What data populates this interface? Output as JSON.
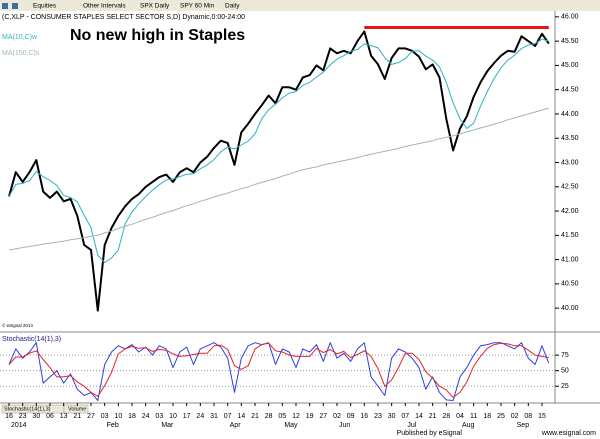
{
  "toolbar": {
    "items": [
      "Equities",
      "Other Intervals",
      "SPX Daily",
      "SPY 60 Min",
      "Daily"
    ]
  },
  "footer": {
    "publisher": "Published by eSignal",
    "url": "www.esignal.com",
    "copyright": "© eSignal 2014"
  },
  "tabs": [
    "Stochastic(14(1),3)",
    "Volume"
  ],
  "chart_data": [
    {
      "type": "line",
      "title": "(C,XLP - CONSUMER STAPLES SELECT SECTOR S,D) Dynamic,0:00-24:00",
      "annotation": "No new high in Staples",
      "resistance": {
        "value": 45.78,
        "from": 52,
        "to": 79,
        "color": "#e8141c"
      },
      "categories": [
        "16",
        null,
        "23",
        null,
        "30",
        null,
        "06",
        null,
        "13",
        null,
        "21",
        null,
        "27",
        null,
        "03",
        null,
        "10",
        null,
        "18",
        null,
        "24",
        null,
        "03",
        null,
        "10",
        null,
        "17",
        null,
        "24",
        null,
        "31",
        null,
        "07",
        null,
        "14",
        null,
        "21",
        null,
        "28",
        null,
        "05",
        null,
        "12",
        null,
        "19",
        null,
        "27",
        null,
        "02",
        null,
        "09",
        null,
        "16",
        null,
        "23",
        null,
        "30",
        null,
        "07",
        null,
        "14",
        null,
        "21",
        null,
        "28",
        null,
        "04",
        null,
        "11",
        null,
        "18",
        null,
        "25",
        null,
        "02",
        null,
        "08",
        null,
        "15",
        null
      ],
      "months": [
        {
          "label": "2014",
          "start": 0
        },
        {
          "label": "Feb",
          "start": 14
        },
        {
          "label": "Mar",
          "start": 22
        },
        {
          "label": "Apr",
          "start": 32
        },
        {
          "label": "May",
          "start": 40
        },
        {
          "label": "Jun",
          "start": 48
        },
        {
          "label": "Jul",
          "start": 58
        },
        {
          "label": "Aug",
          "start": 66
        },
        {
          "label": "Sep",
          "start": 74
        }
      ],
      "series": [
        {
          "name": "XLP",
          "color": "#000000",
          "width": 2,
          "values": [
            42.3,
            42.8,
            42.6,
            42.8,
            43.05,
            42.4,
            42.27,
            42.4,
            42.2,
            42.25,
            41.9,
            41.3,
            41.2,
            39.95,
            41.3,
            41.65,
            41.9,
            42.1,
            42.25,
            42.35,
            42.5,
            42.6,
            42.7,
            42.75,
            42.6,
            42.8,
            42.88,
            42.8,
            43.0,
            43.12,
            43.3,
            43.45,
            43.4,
            42.95,
            43.62,
            43.8,
            44.0,
            44.18,
            44.38,
            44.22,
            44.55,
            44.55,
            44.5,
            44.75,
            44.8,
            45.0,
            44.9,
            45.35,
            45.25,
            45.3,
            45.25,
            45.5,
            45.7,
            45.2,
            45.02,
            44.72,
            45.15,
            45.35,
            45.35,
            45.3,
            45.18,
            44.92,
            45.02,
            44.75,
            43.9,
            43.25,
            43.7,
            43.95,
            44.35,
            44.65,
            44.88,
            45.05,
            45.2,
            45.3,
            45.28,
            45.6,
            45.5,
            45.4,
            45.65,
            45.45
          ]
        },
        {
          "name": "MA(10,C)w",
          "color": "#29b3c4",
          "width": 1,
          "values": [
            42.3,
            42.55,
            42.57,
            42.63,
            42.81,
            42.71,
            42.63,
            42.53,
            42.32,
            42.28,
            42.19,
            41.91,
            41.66,
            41.09,
            40.94,
            41.03,
            41.2,
            41.74,
            41.98,
            42.15,
            42.3,
            42.43,
            42.54,
            42.64,
            42.66,
            42.71,
            42.76,
            42.77,
            42.87,
            42.95,
            43.06,
            43.22,
            43.32,
            43.28,
            43.36,
            43.44,
            43.59,
            43.9,
            44.09,
            44.2,
            44.33,
            44.43,
            44.46,
            44.59,
            44.65,
            44.76,
            44.86,
            45.01,
            45.13,
            45.2,
            45.29,
            45.33,
            45.44,
            45.41,
            45.36,
            45.16,
            45.02,
            45.06,
            45.14,
            45.29,
            45.3,
            45.19,
            45.11,
            44.97,
            44.65,
            44.23,
            43.9,
            43.7,
            43.81,
            44.16,
            44.46,
            44.73,
            44.95,
            45.11,
            45.21,
            45.35,
            45.42,
            45.45,
            45.54,
            45.5
          ]
        },
        {
          "name": "MA(150,C)s",
          "color": "#9fb6be",
          "width": 1,
          "values": [
            41.2,
            41.22,
            41.25,
            41.27,
            41.29,
            41.32,
            41.34,
            41.36,
            41.38,
            41.41,
            41.43,
            41.45,
            41.48,
            41.5,
            41.55,
            41.59,
            41.64,
            41.69,
            41.73,
            41.78,
            41.83,
            41.87,
            41.92,
            41.97,
            42.01,
            42.06,
            42.11,
            42.15,
            42.2,
            42.24,
            42.29,
            42.33,
            42.37,
            42.42,
            42.46,
            42.5,
            42.55,
            42.59,
            42.63,
            42.67,
            42.72,
            42.76,
            42.81,
            42.85,
            42.88,
            42.91,
            42.95,
            42.98,
            43.01,
            43.04,
            43.07,
            43.1,
            43.14,
            43.17,
            43.2,
            43.23,
            43.26,
            43.29,
            43.33,
            43.36,
            43.39,
            43.42,
            43.45,
            43.49,
            43.52,
            43.55,
            43.59,
            43.63,
            43.67,
            43.71,
            43.75,
            43.79,
            43.83,
            43.88,
            43.92,
            43.96,
            44.0,
            44.04,
            44.08,
            44.12
          ]
        }
      ],
      "ylim": [
        39.55,
        46.1
      ],
      "yticks": [
        {
          "value": 40,
          "label": "40.00"
        },
        {
          "value": 40.5,
          "label": "40.50"
        },
        {
          "value": 41,
          "label": "41.00"
        },
        {
          "value": 41.5,
          "label": "41.50"
        },
        {
          "value": 42,
          "label": "42.00"
        },
        {
          "value": 42.5,
          "label": "42.50"
        },
        {
          "value": 43,
          "label": "43.00"
        },
        {
          "value": 43.5,
          "label": "43.50"
        },
        {
          "value": 44,
          "label": "44.00"
        },
        {
          "value": 44.5,
          "label": "44.50"
        },
        {
          "value": 45,
          "label": "45.00"
        },
        {
          "value": 45.5,
          "label": "45.50"
        },
        {
          "value": 46,
          "label": "46.00"
        }
      ],
      "grid": false
    },
    {
      "type": "line",
      "title": "Stochastic(14(1),3)",
      "series": [
        {
          "name": "%K",
          "color": "#2f3fe0",
          "width": 1,
          "values": [
            60,
            85,
            70,
            80,
            95,
            30,
            40,
            50,
            30,
            45,
            20,
            10,
            15,
            2,
            60,
            80,
            90,
            85,
            92,
            80,
            88,
            75,
            90,
            85,
            55,
            80,
            88,
            60,
            85,
            90,
            95,
            88,
            70,
            15,
            70,
            90,
            95,
            92,
            95,
            60,
            85,
            80,
            55,
            85,
            80,
            92,
            65,
            95,
            70,
            78,
            65,
            85,
            95,
            40,
            25,
            10,
            70,
            85,
            80,
            70,
            55,
            20,
            40,
            15,
            3,
            2,
            40,
            55,
            75,
            90,
            92,
            95,
            95,
            90,
            85,
            95,
            70,
            60,
            90,
            62
          ]
        },
        {
          "name": "%D",
          "color": "#e02424",
          "width": 1,
          "values": [
            60,
            72,
            72,
            78,
            82,
            68,
            55,
            40,
            40,
            42,
            32,
            25,
            15,
            9,
            26,
            47,
            77,
            85,
            89,
            86,
            87,
            81,
            84,
            83,
            77,
            73,
            74,
            76,
            78,
            78,
            90,
            91,
            84,
            58,
            52,
            58,
            85,
            92,
            94,
            82,
            80,
            75,
            73,
            73,
            73,
            86,
            79,
            84,
            77,
            81,
            71,
            76,
            82,
            73,
            53,
            25,
            35,
            55,
            78,
            78,
            68,
            48,
            38,
            25,
            19,
            7,
            15,
            32,
            57,
            73,
            86,
            92,
            94,
            93,
            90,
            90,
            83,
            75,
            73,
            71
          ]
        }
      ],
      "ylim": [
        -2,
        109
      ],
      "yticks": [
        25,
        50,
        75
      ],
      "grid": true
    }
  ]
}
